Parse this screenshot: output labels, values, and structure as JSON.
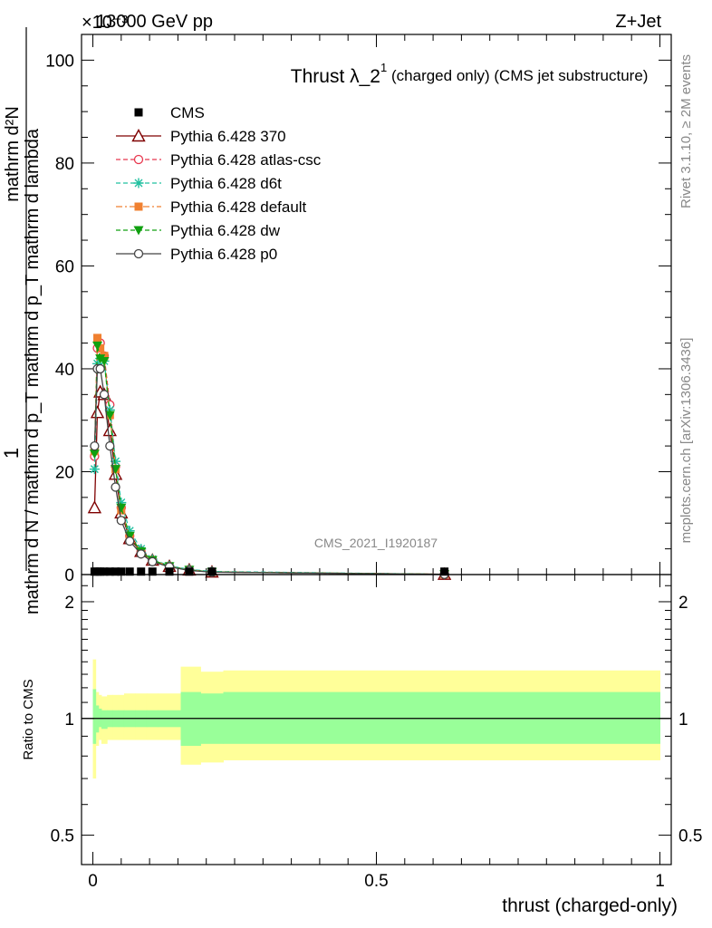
{
  "header": {
    "energy": "13000 GeV pp",
    "process": "Z+Jet",
    "exponent": "×10⁻³"
  },
  "side_labels": {
    "rivet": "Rivet 3.1.10, ≥ 2M events",
    "mcplots": "mcplots.cern.ch [arXiv:1306.3436]"
  },
  "watermark": "CMS_2021_I1920187",
  "chart_data": [
    {
      "type": "line",
      "title": "Thrust λ_2¹ (charged only) (CMS jet substructure)",
      "title_main": "Thrust λ_2",
      "title_sup": "1",
      "title_rest": "(charged only) (CMS jet substructure)",
      "ylabel_top": "1",
      "ylabel_numerator": "mathrm d²N",
      "ylabel_denominator": "mathrm d N / mathrm d p_T mathrm d p_T mathrm d lambda",
      "xlim": [
        -0.02,
        1.02
      ],
      "ylim": [
        0,
        105
      ],
      "yticks": [
        0,
        20,
        40,
        60,
        80,
        100
      ],
      "ytick_labels": [
        "0",
        "20",
        "40",
        "60",
        "80",
        "100"
      ],
      "legend_position": "top-left",
      "cms_points": {
        "name": "CMS",
        "x": [
          0.003,
          0.008,
          0.013,
          0.02,
          0.03,
          0.04,
          0.05,
          0.065,
          0.085,
          0.105,
          0.135,
          0.17,
          0.21,
          0.62
        ],
        "y": [
          0.4,
          0.4,
          0.4,
          0.4,
          0.4,
          0.4,
          0.4,
          0.4,
          0.4,
          0.4,
          0.4,
          0.4,
          0.4,
          0.4
        ]
      },
      "series": [
        {
          "name": "Pythia 6.428 370",
          "color": "#7f0000",
          "dash": "solid",
          "marker": "triangle-open",
          "x": [
            0.003,
            0.008,
            0.013,
            0.02,
            0.03,
            0.04,
            0.05,
            0.065,
            0.085,
            0.105,
            0.135,
            0.17,
            0.21,
            0.62
          ],
          "y": [
            13.0,
            31.5,
            35.5,
            35.0,
            28.0,
            19.5,
            12.0,
            7.0,
            4.5,
            2.8,
            1.6,
            0.9,
            0.5,
            0.05
          ]
        },
        {
          "name": "Pythia 6.428 atlas-csc",
          "color": "#e8384f",
          "dash": "dashed",
          "marker": "circle-open",
          "x": [
            0.003,
            0.008,
            0.013,
            0.02,
            0.03,
            0.04,
            0.05,
            0.065,
            0.085,
            0.105,
            0.135,
            0.17,
            0.21,
            0.62
          ],
          "y": [
            23.0,
            44.0,
            45.0,
            42.5,
            33.0,
            21.0,
            13.0,
            7.5,
            4.5,
            2.8,
            1.6,
            0.9,
            0.5,
            0.05
          ]
        },
        {
          "name": "Pythia 6.428 d6t",
          "color": "#20c0a0",
          "dash": "dashed",
          "marker": "star",
          "x": [
            0.003,
            0.008,
            0.013,
            0.02,
            0.03,
            0.04,
            0.05,
            0.065,
            0.085,
            0.105,
            0.135,
            0.17,
            0.21,
            0.62
          ],
          "y": [
            20.5,
            41.0,
            42.0,
            41.5,
            32.0,
            22.0,
            14.0,
            8.5,
            5.0,
            3.0,
            1.7,
            1.0,
            0.6,
            0.06
          ]
        },
        {
          "name": "Pythia 6.428 default",
          "color": "#f08030",
          "dash": "dashdot",
          "marker": "square",
          "x": [
            0.003,
            0.008,
            0.013,
            0.02,
            0.03,
            0.04,
            0.05,
            0.065,
            0.085,
            0.105,
            0.135,
            0.17,
            0.21,
            0.62
          ],
          "y": [
            24.0,
            46.0,
            44.0,
            42.5,
            31.0,
            20.5,
            12.5,
            7.5,
            4.5,
            2.8,
            1.6,
            0.9,
            0.5,
            0.05
          ]
        },
        {
          "name": "Pythia 6.428 dw",
          "color": "#10a010",
          "dash": "dashed",
          "marker": "triangle-down",
          "x": [
            0.003,
            0.008,
            0.013,
            0.02,
            0.03,
            0.04,
            0.05,
            0.065,
            0.085,
            0.105,
            0.135,
            0.17,
            0.21,
            0.62
          ],
          "y": [
            23.5,
            44.5,
            42.0,
            41.5,
            31.0,
            20.5,
            13.0,
            7.5,
            4.5,
            2.8,
            1.6,
            0.9,
            0.5,
            0.05
          ]
        },
        {
          "name": "Pythia 6.428 p0",
          "color": "#444444",
          "dash": "solid",
          "marker": "circle-open",
          "x": [
            0.003,
            0.008,
            0.013,
            0.02,
            0.03,
            0.04,
            0.05,
            0.065,
            0.085,
            0.105,
            0.135,
            0.17,
            0.21,
            0.62
          ],
          "y": [
            25.0,
            40.0,
            40.0,
            35.0,
            25.0,
            17.0,
            10.5,
            6.5,
            4.0,
            2.5,
            1.5,
            0.8,
            0.45,
            0.04
          ]
        }
      ]
    },
    {
      "type": "area",
      "ylabel": "Ratio to CMS",
      "xlabel": "thrust (charged-only)",
      "xlim": [
        -0.02,
        1.02
      ],
      "ylim": [
        0.42,
        2.35
      ],
      "log_y": true,
      "xticks": [
        0,
        0.5,
        1
      ],
      "xtick_labels": [
        "0",
        "0.5",
        "1"
      ],
      "yticks": [
        0.5,
        1,
        2
      ],
      "ytick_labels": [
        "0.5",
        "1",
        "2"
      ],
      "reference_line": 1,
      "bands": {
        "edges": [
          0.0,
          0.005,
          0.01,
          0.015,
          0.025,
          0.035,
          0.045,
          0.055,
          0.075,
          0.095,
          0.115,
          0.155,
          0.19,
          0.23,
          1.0
        ],
        "inner_lo": [
          0.86,
          0.92,
          0.95,
          0.94,
          0.95,
          0.95,
          0.95,
          0.95,
          0.95,
          0.95,
          0.95,
          0.85,
          0.86,
          0.86
        ],
        "inner_hi": [
          1.19,
          1.08,
          1.06,
          1.05,
          1.05,
          1.05,
          1.05,
          1.05,
          1.05,
          1.05,
          1.05,
          1.17,
          1.16,
          1.17
        ],
        "outer_lo": [
          0.7,
          0.85,
          0.88,
          0.86,
          0.88,
          0.88,
          0.88,
          0.88,
          0.88,
          0.88,
          0.88,
          0.76,
          0.77,
          0.78
        ],
        "outer_hi": [
          1.42,
          1.17,
          1.15,
          1.14,
          1.15,
          1.15,
          1.15,
          1.16,
          1.16,
          1.16,
          1.16,
          1.36,
          1.32,
          1.33
        ]
      }
    }
  ]
}
